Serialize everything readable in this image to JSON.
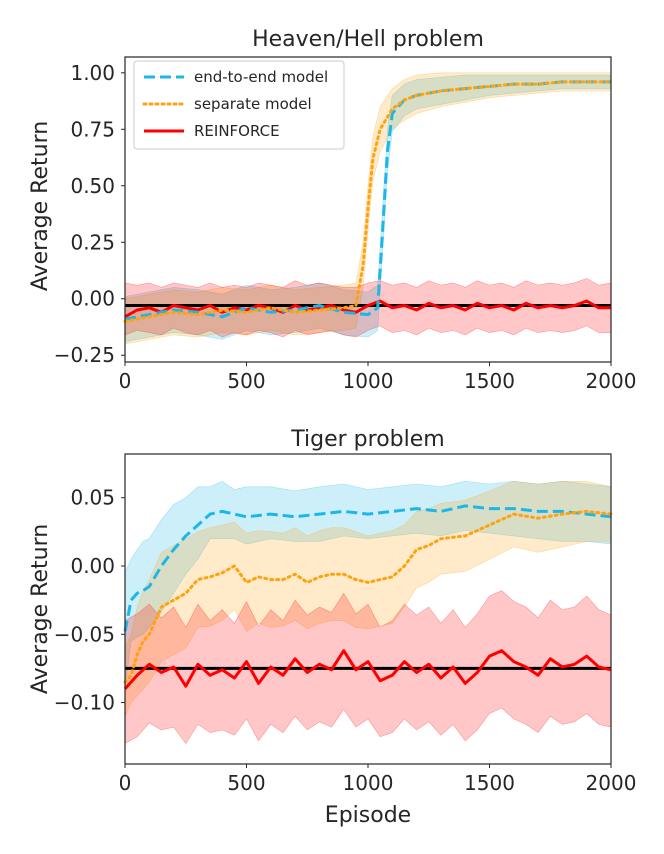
{
  "chart_data": [
    {
      "type": "line",
      "title": "Heaven/Hell problem",
      "xlabel": "",
      "ylabel": "Average Return",
      "xlim": [
        0,
        2000
      ],
      "ylim": [
        -0.28,
        1.07
      ],
      "xticks": [
        0,
        500,
        1000,
        1500,
        2000
      ],
      "xtick_labels": [
        "0",
        "500",
        "1000",
        "1500",
        "2000"
      ],
      "yticks": [
        -0.25,
        0.0,
        0.25,
        0.5,
        0.75,
        1.0
      ],
      "ytick_labels": [
        "−0.25",
        "0.00",
        "0.25",
        "0.50",
        "0.75",
        "1.00"
      ],
      "legend": {
        "location": "top-left",
        "entries": [
          "end-to-end model",
          "separate model",
          "REINFORCE"
        ]
      },
      "baseline": -0.03,
      "series": [
        {
          "name": "end-to-end model",
          "color": "#1cb7e8",
          "style": "dashed",
          "x": [
            0,
            100,
            200,
            300,
            400,
            500,
            600,
            700,
            800,
            900,
            1000,
            1040,
            1060,
            1080,
            1100,
            1150,
            1200,
            1300,
            1400,
            1500,
            1600,
            1700,
            1800,
            1900,
            2000
          ],
          "values": [
            -0.09,
            -0.07,
            -0.05,
            -0.06,
            -0.08,
            -0.04,
            -0.06,
            -0.05,
            -0.03,
            -0.06,
            -0.07,
            -0.04,
            0.3,
            0.65,
            0.82,
            0.88,
            0.9,
            0.92,
            0.93,
            0.94,
            0.95,
            0.95,
            0.96,
            0.96,
            0.96
          ],
          "upper": [
            0.01,
            0.03,
            0.05,
            0.04,
            0.02,
            0.06,
            0.04,
            0.05,
            0.07,
            0.04,
            0.03,
            0.06,
            0.4,
            0.75,
            0.9,
            0.95,
            0.97,
            0.98,
            0.99,
            0.99,
            0.99,
            0.99,
            0.99,
            0.99,
            0.99
          ],
          "lower": [
            -0.19,
            -0.17,
            -0.15,
            -0.16,
            -0.18,
            -0.14,
            -0.16,
            -0.15,
            -0.13,
            -0.16,
            -0.17,
            -0.14,
            0.2,
            0.55,
            0.74,
            0.81,
            0.84,
            0.86,
            0.88,
            0.9,
            0.91,
            0.92,
            0.93,
            0.93,
            0.93
          ]
        },
        {
          "name": "separate model",
          "color": "#ffa20f",
          "style": "dotted",
          "x": [
            0,
            100,
            200,
            300,
            400,
            500,
            600,
            700,
            800,
            900,
            950,
            980,
            1000,
            1020,
            1050,
            1100,
            1150,
            1200,
            1300,
            1400,
            1500,
            1600,
            1700,
            1800,
            1900,
            2000
          ],
          "values": [
            -0.1,
            -0.08,
            -0.06,
            -0.07,
            -0.05,
            -0.06,
            -0.04,
            -0.06,
            -0.05,
            -0.04,
            -0.03,
            0.15,
            0.4,
            0.62,
            0.75,
            0.84,
            0.88,
            0.9,
            0.92,
            0.93,
            0.94,
            0.95,
            0.95,
            0.96,
            0.96,
            0.96
          ],
          "upper": [
            0.0,
            0.02,
            0.04,
            0.03,
            0.05,
            0.04,
            0.06,
            0.04,
            0.05,
            0.06,
            0.07,
            0.25,
            0.5,
            0.72,
            0.85,
            0.93,
            0.97,
            0.99,
            1.0,
            1.0,
            1.0,
            1.0,
            1.0,
            1.0,
            1.0,
            1.0
          ],
          "lower": [
            -0.2,
            -0.18,
            -0.16,
            -0.17,
            -0.15,
            -0.16,
            -0.14,
            -0.16,
            -0.15,
            -0.14,
            -0.13,
            0.05,
            0.3,
            0.52,
            0.65,
            0.75,
            0.79,
            0.82,
            0.85,
            0.87,
            0.89,
            0.9,
            0.91,
            0.92,
            0.92,
            0.92
          ]
        },
        {
          "name": "REINFORCE",
          "color": "#ff0000",
          "style": "solid",
          "x": [
            0,
            50,
            100,
            150,
            200,
            250,
            300,
            350,
            400,
            450,
            500,
            550,
            600,
            650,
            700,
            750,
            800,
            850,
            900,
            950,
            1000,
            1050,
            1100,
            1150,
            1200,
            1250,
            1300,
            1350,
            1400,
            1450,
            1500,
            1550,
            1600,
            1650,
            1700,
            1750,
            1800,
            1850,
            1900,
            1950,
            2000
          ],
          "values": [
            -0.08,
            -0.05,
            -0.04,
            -0.06,
            -0.03,
            -0.04,
            -0.05,
            -0.03,
            -0.06,
            -0.04,
            -0.05,
            -0.03,
            -0.04,
            -0.06,
            -0.03,
            -0.05,
            -0.04,
            -0.03,
            -0.05,
            -0.06,
            -0.03,
            -0.01,
            -0.04,
            -0.03,
            -0.05,
            -0.02,
            -0.04,
            -0.03,
            -0.05,
            -0.02,
            -0.04,
            -0.03,
            -0.05,
            -0.02,
            -0.04,
            -0.03,
            -0.04,
            -0.03,
            -0.01,
            -0.04,
            -0.04
          ],
          "upper": [
            0.07,
            0.06,
            0.07,
            0.05,
            0.07,
            0.06,
            0.05,
            0.07,
            0.05,
            0.06,
            0.05,
            0.07,
            0.06,
            0.05,
            0.08,
            0.06,
            0.07,
            0.06,
            0.05,
            0.05,
            0.07,
            0.08,
            0.06,
            0.07,
            0.05,
            0.08,
            0.06,
            0.07,
            0.05,
            0.08,
            0.06,
            0.07,
            0.05,
            0.08,
            0.06,
            0.07,
            0.06,
            0.07,
            0.09,
            0.06,
            0.07
          ],
          "lower": [
            -0.16,
            -0.14,
            -0.15,
            -0.16,
            -0.13,
            -0.15,
            -0.16,
            -0.14,
            -0.17,
            -0.15,
            -0.16,
            -0.14,
            -0.15,
            -0.17,
            -0.14,
            -0.16,
            -0.15,
            -0.14,
            -0.16,
            -0.17,
            -0.14,
            -0.12,
            -0.15,
            -0.14,
            -0.16,
            -0.13,
            -0.15,
            -0.14,
            -0.16,
            -0.13,
            -0.15,
            -0.14,
            -0.16,
            -0.13,
            -0.15,
            -0.14,
            -0.15,
            -0.14,
            -0.12,
            -0.15,
            -0.15
          ]
        }
      ]
    },
    {
      "type": "line",
      "title": "Tiger problem",
      "xlabel": "Episode",
      "ylabel": "Average Return",
      "xlim": [
        0,
        2000
      ],
      "ylim": [
        -0.145,
        0.082
      ],
      "xticks": [
        0,
        500,
        1000,
        1500,
        2000
      ],
      "xtick_labels": [
        "0",
        "500",
        "1000",
        "1500",
        "2000"
      ],
      "yticks": [
        -0.1,
        -0.05,
        0.0,
        0.05
      ],
      "ytick_labels": [
        "−0.10",
        "−0.05",
        "0.00",
        "0.05"
      ],
      "baseline": -0.075,
      "series": [
        {
          "name": "end-to-end model",
          "color": "#1cb7e8",
          "style": "dashed",
          "x": [
            0,
            25,
            50,
            75,
            100,
            150,
            200,
            250,
            300,
            350,
            400,
            450,
            500,
            600,
            700,
            800,
            900,
            1000,
            1100,
            1200,
            1300,
            1400,
            1500,
            1600,
            1700,
            1800,
            1900,
            2000
          ],
          "values": [
            -0.048,
            -0.025,
            -0.02,
            -0.018,
            -0.015,
            0.0,
            0.012,
            0.022,
            0.03,
            0.038,
            0.04,
            0.038,
            0.036,
            0.038,
            0.036,
            0.038,
            0.04,
            0.038,
            0.04,
            0.042,
            0.04,
            0.044,
            0.042,
            0.042,
            0.04,
            0.04,
            0.038,
            0.036
          ],
          "upper": [
            -0.005,
            0.005,
            0.012,
            0.018,
            0.02,
            0.034,
            0.045,
            0.05,
            0.058,
            0.058,
            0.062,
            0.056,
            0.058,
            0.058,
            0.055,
            0.058,
            0.06,
            0.056,
            0.058,
            0.06,
            0.058,
            0.062,
            0.06,
            0.062,
            0.06,
            0.062,
            0.06,
            0.058
          ],
          "lower": [
            -0.09,
            -0.055,
            -0.052,
            -0.05,
            -0.045,
            -0.034,
            -0.02,
            -0.006,
            0.005,
            0.02,
            0.02,
            0.02,
            0.016,
            0.02,
            0.018,
            0.018,
            0.022,
            0.02,
            0.022,
            0.024,
            0.022,
            0.026,
            0.024,
            0.022,
            0.02,
            0.018,
            0.018,
            0.016
          ]
        },
        {
          "name": "separate model",
          "color": "#ffa20f",
          "style": "dotted",
          "x": [
            0,
            25,
            50,
            75,
            100,
            150,
            200,
            250,
            300,
            350,
            400,
            450,
            500,
            550,
            600,
            650,
            700,
            750,
            800,
            850,
            900,
            950,
            1000,
            1050,
            1100,
            1150,
            1200,
            1250,
            1300,
            1400,
            1500,
            1600,
            1700,
            1800,
            1900,
            2000
          ],
          "values": [
            -0.085,
            -0.08,
            -0.065,
            -0.055,
            -0.05,
            -0.03,
            -0.025,
            -0.02,
            -0.01,
            -0.008,
            -0.005,
            0.0,
            -0.012,
            -0.008,
            -0.01,
            -0.01,
            -0.006,
            -0.012,
            -0.008,
            -0.006,
            -0.006,
            -0.01,
            -0.012,
            -0.01,
            -0.008,
            0.0,
            0.012,
            0.015,
            0.02,
            0.022,
            0.03,
            0.038,
            0.035,
            0.038,
            0.04,
            0.038
          ],
          "upper": [
            -0.06,
            -0.05,
            -0.03,
            -0.018,
            -0.01,
            0.01,
            0.015,
            0.02,
            0.025,
            0.028,
            0.03,
            0.032,
            0.024,
            0.026,
            0.025,
            0.024,
            0.028,
            0.022,
            0.026,
            0.028,
            0.028,
            0.025,
            0.022,
            0.024,
            0.026,
            0.03,
            0.04,
            0.042,
            0.046,
            0.048,
            0.055,
            0.062,
            0.06,
            0.062,
            0.062,
            0.058
          ],
          "lower": [
            -0.11,
            -0.1,
            -0.095,
            -0.09,
            -0.085,
            -0.07,
            -0.065,
            -0.06,
            -0.045,
            -0.044,
            -0.04,
            -0.032,
            -0.048,
            -0.042,
            -0.045,
            -0.044,
            -0.04,
            -0.046,
            -0.042,
            -0.04,
            -0.04,
            -0.045,
            -0.046,
            -0.044,
            -0.042,
            -0.03,
            -0.016,
            -0.012,
            -0.006,
            -0.004,
            0.005,
            0.014,
            0.01,
            0.014,
            0.018,
            0.018
          ]
        },
        {
          "name": "REINFORCE",
          "color": "#ff0000",
          "style": "solid",
          "x": [
            0,
            50,
            100,
            150,
            200,
            250,
            300,
            350,
            400,
            450,
            500,
            550,
            600,
            650,
            700,
            750,
            800,
            850,
            900,
            950,
            1000,
            1050,
            1100,
            1150,
            1200,
            1250,
            1300,
            1350,
            1400,
            1450,
            1500,
            1550,
            1600,
            1650,
            1700,
            1750,
            1800,
            1850,
            1900,
            1950,
            2000
          ],
          "values": [
            -0.09,
            -0.08,
            -0.072,
            -0.078,
            -0.074,
            -0.088,
            -0.072,
            -0.08,
            -0.076,
            -0.082,
            -0.07,
            -0.086,
            -0.074,
            -0.08,
            -0.068,
            -0.078,
            -0.072,
            -0.076,
            -0.062,
            -0.076,
            -0.07,
            -0.084,
            -0.08,
            -0.07,
            -0.078,
            -0.072,
            -0.082,
            -0.074,
            -0.086,
            -0.078,
            -0.066,
            -0.062,
            -0.07,
            -0.074,
            -0.08,
            -0.068,
            -0.074,
            -0.072,
            -0.066,
            -0.074,
            -0.076
          ],
          "upper": [
            -0.04,
            -0.035,
            -0.028,
            -0.038,
            -0.03,
            -0.045,
            -0.028,
            -0.04,
            -0.032,
            -0.042,
            -0.026,
            -0.044,
            -0.032,
            -0.04,
            -0.025,
            -0.036,
            -0.03,
            -0.034,
            -0.02,
            -0.035,
            -0.028,
            -0.045,
            -0.04,
            -0.028,
            -0.036,
            -0.03,
            -0.042,
            -0.032,
            -0.045,
            -0.035,
            -0.022,
            -0.018,
            -0.026,
            -0.03,
            -0.038,
            -0.025,
            -0.032,
            -0.03,
            -0.022,
            -0.032,
            -0.036
          ],
          "lower": [
            -0.13,
            -0.125,
            -0.115,
            -0.12,
            -0.118,
            -0.13,
            -0.116,
            -0.122,
            -0.12,
            -0.124,
            -0.112,
            -0.128,
            -0.116,
            -0.122,
            -0.11,
            -0.12,
            -0.114,
            -0.118,
            -0.105,
            -0.118,
            -0.112,
            -0.125,
            -0.122,
            -0.112,
            -0.12,
            -0.114,
            -0.124,
            -0.116,
            -0.128,
            -0.12,
            -0.108,
            -0.104,
            -0.112,
            -0.116,
            -0.122,
            -0.11,
            -0.116,
            -0.114,
            -0.108,
            -0.116,
            -0.118
          ]
        }
      ]
    }
  ]
}
